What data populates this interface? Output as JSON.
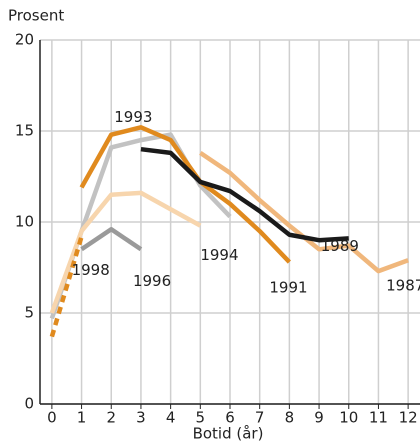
{
  "chart_data": {
    "type": "line",
    "y_label": "Prosent",
    "x_label": "Botid (år)",
    "xlim": [
      -0.4,
      12.4
    ],
    "ylim": [
      0,
      20
    ],
    "xticks": [
      0,
      1,
      2,
      3,
      4,
      5,
      6,
      7,
      8,
      9,
      10,
      11,
      12
    ],
    "yticks": [
      0,
      5,
      10,
      15,
      20
    ],
    "grid": true,
    "series": [
      {
        "name": "1993",
        "color": "#c2c2c2",
        "x": [
          0,
          1,
          2,
          3,
          4,
          5,
          6
        ],
        "values": [
          4.7,
          9.5,
          14.1,
          14.5,
          14.8,
          12.0,
          10.3
        ]
      },
      {
        "name": "1994",
        "color": "#f7d5ad",
        "x": [
          0,
          1,
          2,
          3,
          4,
          5
        ],
        "values": [
          5.0,
          9.5,
          11.5,
          11.6,
          10.7,
          9.8
        ]
      },
      {
        "name": "1996",
        "color": "#9a9a9a",
        "x": [
          1,
          2,
          3
        ],
        "values": [
          8.5,
          9.6,
          8.5
        ]
      },
      {
        "name": "1987",
        "color": "#f0b77c",
        "x": [
          5,
          6,
          7,
          8,
          9,
          10,
          11,
          12
        ],
        "values": [
          13.8,
          12.7,
          11.2,
          9.8,
          8.5,
          8.7,
          7.3,
          7.9
        ]
      },
      {
        "name": "1991",
        "color": "#e08a1e",
        "x": [
          1,
          2,
          3,
          4,
          5,
          6,
          7,
          8
        ],
        "values": [
          11.9,
          14.8,
          15.2,
          14.5,
          12.2,
          11.0,
          9.5,
          7.8
        ]
      },
      {
        "name": "1989",
        "color": "#1a1a1a",
        "x": [
          3,
          4,
          5,
          6,
          7,
          8,
          9,
          10
        ],
        "values": [
          14.0,
          13.8,
          12.2,
          11.7,
          10.6,
          9.3,
          9.0,
          9.1
        ]
      },
      {
        "name": "1998",
        "color": "#e08a1e",
        "dashed": true,
        "x": [
          0,
          1
        ],
        "values": [
          3.7,
          9.2
        ]
      }
    ]
  }
}
